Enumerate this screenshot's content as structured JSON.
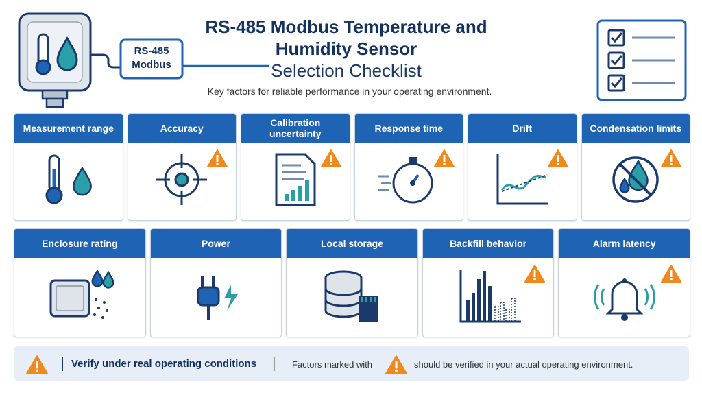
{
  "header": {
    "title_lines": [
      "RS-485 Modbus Temperature and",
      "Humidity Sensor"
    ],
    "subtitle": "Selection Checklist",
    "tagline": "Key factors for reliable performance in your operating environment.",
    "device_label": [
      "RS-485",
      "Modbus"
    ]
  },
  "cards": {
    "rows": [
      [
        {
          "label": "Measurement range",
          "warning": false
        },
        {
          "label": "Accuracy",
          "warning": true
        },
        {
          "label": "Calibration uncertainty",
          "warning": true
        },
        {
          "label": "Response time",
          "warning": true
        },
        {
          "label": "Drift",
          "warning": true
        },
        {
          "label": "Condensation limits",
          "warning": true
        }
      ],
      [
        {
          "label": "Enclosure rating",
          "warning": false
        },
        {
          "label": "Power",
          "warning": false
        },
        {
          "label": "Local storage",
          "warning": false
        },
        {
          "label": "Backfill behavior",
          "warning": true
        },
        {
          "label": "Alarm latency",
          "warning": true
        }
      ]
    ]
  },
  "footer": {
    "heading": "Verify under real operating conditions",
    "note_before": "Factors marked with",
    "note_after": "should be verified in your actual operating environment."
  }
}
